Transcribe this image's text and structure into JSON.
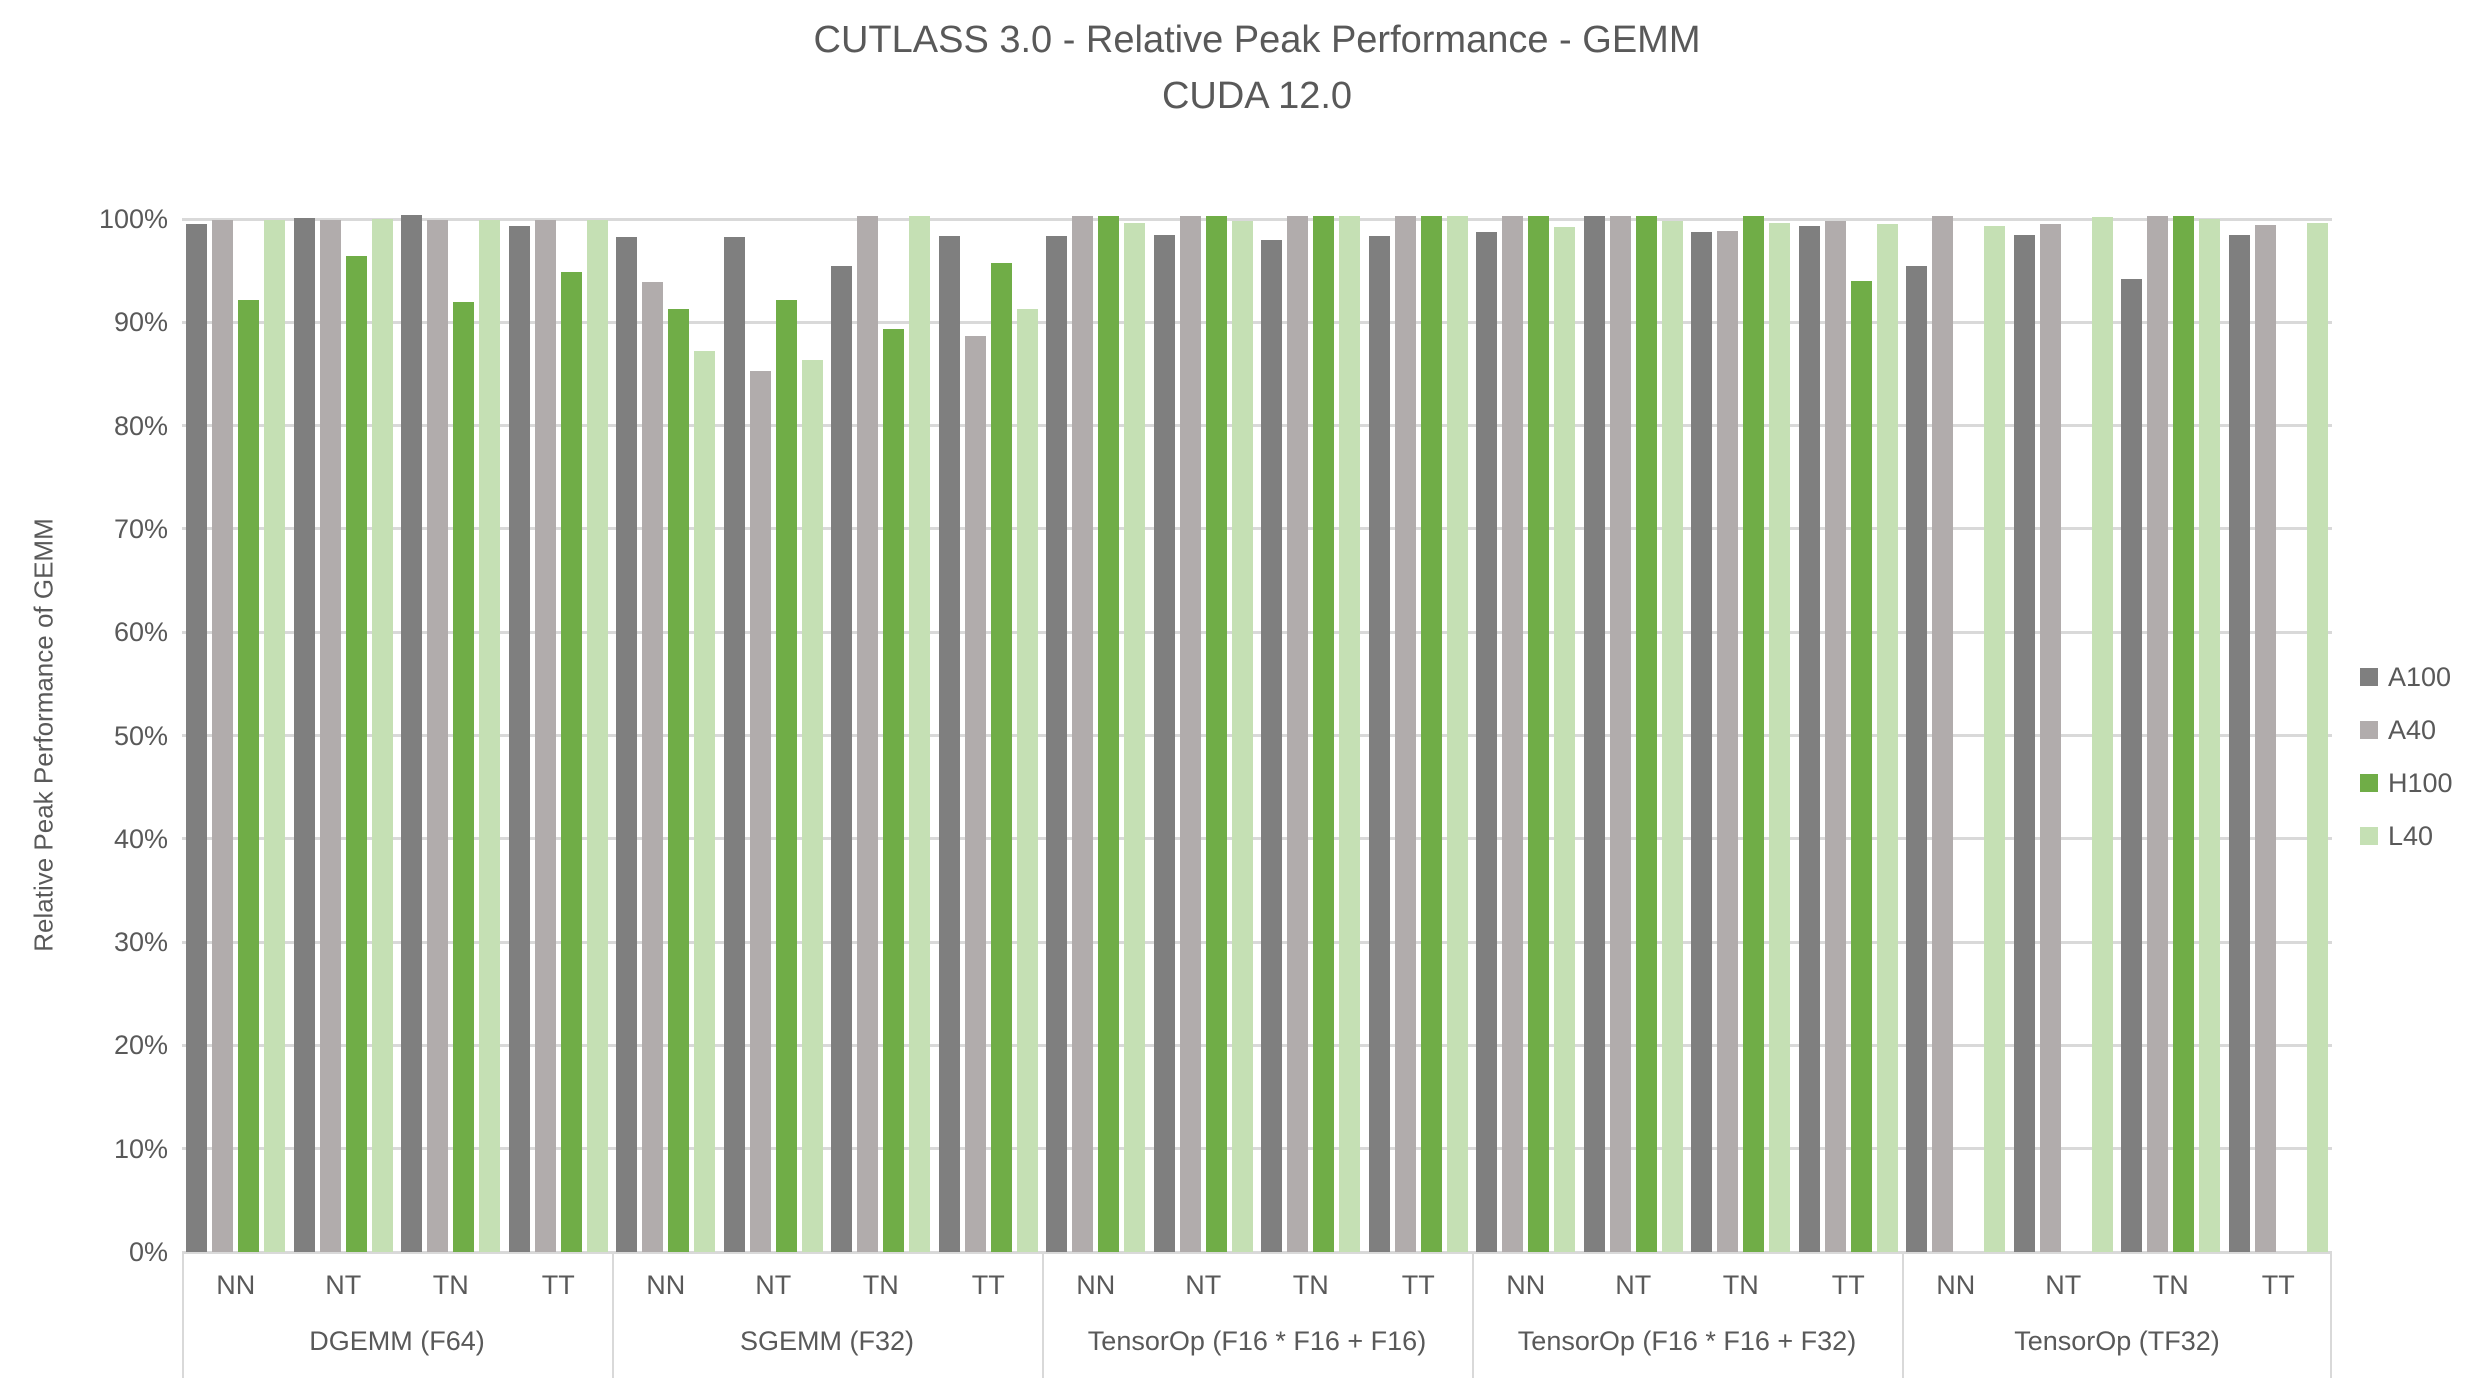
{
  "chart_data": {
    "type": "bar",
    "title": "CUTLASS 3.0 - Relative Peak Performance - GEMM",
    "subtitle": "CUDA 12.0",
    "ylabel": "Relative Peak Performance of GEMM",
    "ylim": [
      0,
      100
    ],
    "yticks": [
      "0%",
      "10%",
      "20%",
      "30%",
      "40%",
      "50%",
      "60%",
      "70%",
      "80%",
      "90%",
      "100%"
    ],
    "grid": true,
    "legend_position": "right",
    "gridline_color": "#D9D9D9",
    "ops": [
      "NN",
      "NT",
      "TN",
      "TT"
    ],
    "series": [
      {
        "name": "A100",
        "color": "#7F7F7F"
      },
      {
        "name": "A40",
        "color": "#B1ACAC"
      },
      {
        "name": "H100",
        "color": "#70AD47"
      },
      {
        "name": "L40",
        "color": "#C5E0B4"
      }
    ],
    "groups": [
      {
        "label": "DGEMM (F64)",
        "values": {
          "A100": [
            99.5,
            100.1,
            100.4,
            99.3
          ],
          "A40": [
            99.9,
            99.9,
            99.9,
            99.9
          ],
          "H100": [
            92.2,
            96.4,
            92.0,
            94.9
          ],
          "L40": [
            99.9,
            100.0,
            99.9,
            99.9
          ]
        }
      },
      {
        "label": "SGEMM (F32)",
        "values": {
          "A100": [
            98.3,
            98.3,
            95.5,
            98.4
          ],
          "A40": [
            93.9,
            85.3,
            100.3,
            88.7
          ],
          "H100": [
            91.3,
            92.2,
            89.4,
            95.7
          ],
          "L40": [
            87.2,
            86.4,
            100.3,
            91.3
          ]
        }
      },
      {
        "label": "TensorOp (F16 * F16 + F16)",
        "values": {
          "A100": [
            98.4,
            98.5,
            98.0,
            98.4
          ],
          "A40": [
            100.3,
            100.3,
            100.3,
            100.3
          ],
          "H100": [
            100.3,
            100.3,
            100.3,
            100.3
          ],
          "L40": [
            99.6,
            99.8,
            100.3,
            100.3
          ]
        }
      },
      {
        "label": "TensorOp (F16 * F16 + F32)",
        "values": {
          "A100": [
            98.7,
            100.3,
            98.7,
            99.3
          ],
          "A40": [
            100.3,
            100.3,
            98.8,
            99.8
          ],
          "H100": [
            100.3,
            100.3,
            100.3,
            94.0
          ],
          "L40": [
            99.2,
            99.8,
            99.6,
            99.5
          ]
        }
      },
      {
        "label": "TensorOp (TF32)",
        "values": {
          "A100": [
            95.5,
            98.5,
            94.2,
            98.5
          ],
          "A40": [
            100.3,
            99.5,
            100.3,
            99.4
          ],
          "H100": [
            null,
            null,
            100.3,
            null
          ],
          "L40": [
            99.3,
            100.2,
            100.0,
            99.6
          ]
        }
      }
    ]
  }
}
